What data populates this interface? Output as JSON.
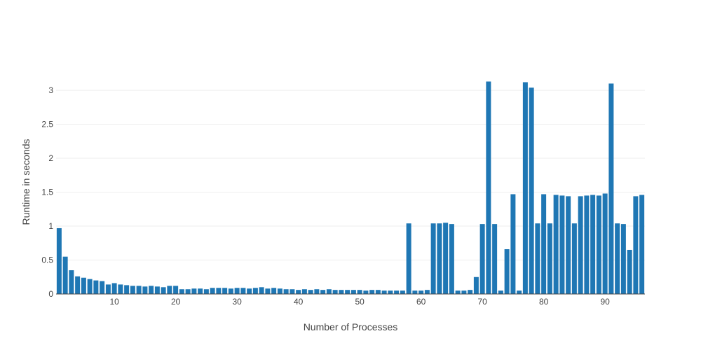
{
  "chart_data": {
    "type": "bar",
    "title": "",
    "xlabel": "Number of Processes",
    "ylabel": "Runtime in seconds",
    "xlim": [
      0.5,
      96.5
    ],
    "ylim": [
      0,
      3.3
    ],
    "x_ticks": [
      10,
      20,
      30,
      40,
      50,
      60,
      70,
      80,
      90
    ],
    "y_ticks": [
      0,
      0.5,
      1,
      1.5,
      2,
      2.5,
      3
    ],
    "y_tick_labels": [
      "0",
      "0.5",
      "1",
      "1.5",
      "2",
      "2.5",
      "3"
    ],
    "grid": true,
    "bar_color": "#1f77b4",
    "x": [
      1,
      2,
      3,
      4,
      5,
      6,
      7,
      8,
      9,
      10,
      11,
      12,
      13,
      14,
      15,
      16,
      17,
      18,
      19,
      20,
      21,
      22,
      23,
      24,
      25,
      26,
      27,
      28,
      29,
      30,
      31,
      32,
      33,
      34,
      35,
      36,
      37,
      38,
      39,
      40,
      41,
      42,
      43,
      44,
      45,
      46,
      47,
      48,
      49,
      50,
      51,
      52,
      53,
      54,
      55,
      56,
      57,
      58,
      59,
      60,
      61,
      62,
      63,
      64,
      65,
      66,
      67,
      68,
      69,
      70,
      71,
      72,
      73,
      74,
      75,
      76,
      77,
      78,
      79,
      80,
      81,
      82,
      83,
      84,
      85,
      86,
      87,
      88,
      89,
      90,
      91,
      92,
      93,
      94,
      95,
      96
    ],
    "values": [
      0.97,
      0.55,
      0.35,
      0.26,
      0.24,
      0.22,
      0.2,
      0.19,
      0.14,
      0.16,
      0.14,
      0.13,
      0.12,
      0.12,
      0.11,
      0.12,
      0.11,
      0.1,
      0.12,
      0.12,
      0.07,
      0.07,
      0.08,
      0.08,
      0.07,
      0.09,
      0.09,
      0.09,
      0.08,
      0.09,
      0.09,
      0.08,
      0.09,
      0.1,
      0.08,
      0.09,
      0.08,
      0.07,
      0.07,
      0.06,
      0.07,
      0.06,
      0.07,
      0.06,
      0.07,
      0.06,
      0.06,
      0.06,
      0.06,
      0.06,
      0.05,
      0.06,
      0.06,
      0.05,
      0.05,
      0.05,
      0.05,
      1.04,
      0.05,
      0.05,
      0.06,
      1.04,
      1.04,
      1.05,
      1.03,
      0.05,
      0.05,
      0.06,
      0.25,
      1.03,
      3.13,
      1.03,
      0.05,
      0.66,
      1.47,
      0.05,
      3.12,
      3.04,
      1.04,
      1.47,
      1.04,
      1.46,
      1.45,
      1.44,
      1.04,
      1.44,
      1.45,
      1.46,
      1.45,
      1.48,
      3.1,
      1.04,
      1.03,
      0.65,
      1.44,
      1.46
    ]
  }
}
